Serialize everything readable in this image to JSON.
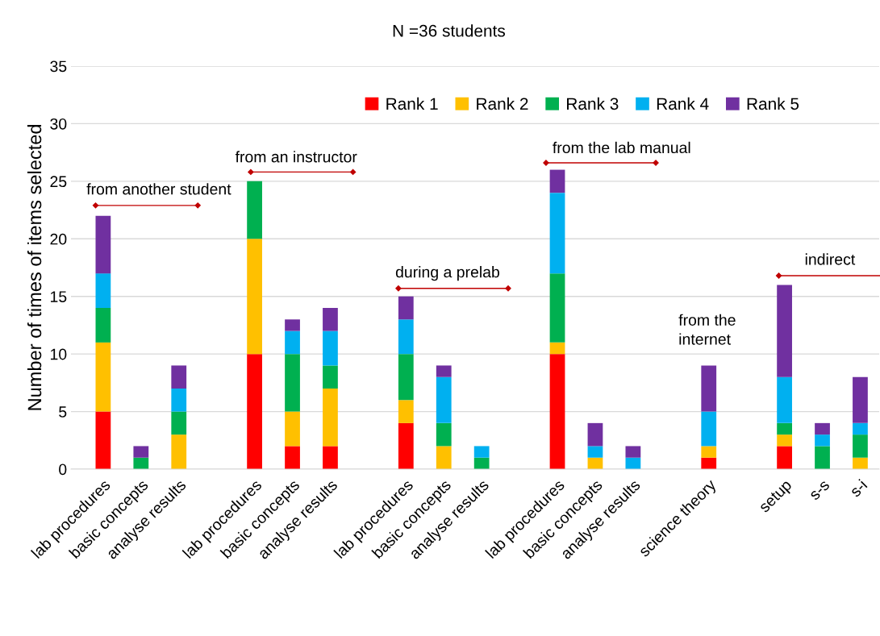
{
  "chart_data": {
    "type": "bar",
    "stacked": true,
    "title": "N =36 students",
    "ylabel": "Number of times of items selected",
    "categories": [
      "lab procedures",
      "basic concepts",
      "analyse results",
      null,
      "lab procedures",
      "basic concepts",
      "analyse results",
      null,
      "lab procedures",
      "basic concepts",
      "analyse results",
      null,
      "lab procedures",
      "basic concepts",
      "analyse results",
      null,
      "science theory",
      null,
      "setup",
      "s-s",
      "s-i"
    ],
    "series": [
      {
        "name": "Rank 1",
        "color": "#ff0000",
        "values": [
          5,
          0,
          0,
          null,
          10,
          2,
          2,
          null,
          4,
          0,
          0,
          null,
          10,
          0,
          0,
          null,
          1,
          null,
          2,
          0,
          0
        ]
      },
      {
        "name": "Rank 2",
        "color": "#ffc000",
        "values": [
          6,
          0,
          3,
          null,
          10,
          3,
          5,
          null,
          2,
          2,
          0,
          null,
          1,
          1,
          0,
          null,
          1,
          null,
          1,
          0,
          1
        ]
      },
      {
        "name": "Rank 3",
        "color": "#00b050",
        "values": [
          3,
          1,
          2,
          null,
          5,
          5,
          2,
          null,
          4,
          2,
          1,
          null,
          6,
          0,
          0,
          null,
          0,
          null,
          1,
          2,
          2
        ]
      },
      {
        "name": "Rank 4",
        "color": "#00b0f0",
        "values": [
          3,
          0,
          2,
          null,
          0,
          2,
          3,
          null,
          3,
          4,
          1,
          null,
          7,
          1,
          1,
          null,
          3,
          null,
          4,
          1,
          1
        ]
      },
      {
        "name": "Rank 5",
        "color": "#7030a0",
        "values": [
          5,
          1,
          2,
          null,
          0,
          1,
          2,
          null,
          2,
          1,
          0,
          null,
          2,
          2,
          1,
          null,
          4,
          null,
          8,
          1,
          4
        ]
      }
    ],
    "ylim": [
      0,
      35
    ],
    "yticks": [
      0,
      5,
      10,
      15,
      20,
      25,
      30,
      35
    ],
    "grid": "y",
    "legend": "top right",
    "annotations": [
      "from another student",
      "from an instructor",
      "during a prelab",
      "from the lab manual",
      "from the\ninternet",
      "indirect"
    ]
  }
}
